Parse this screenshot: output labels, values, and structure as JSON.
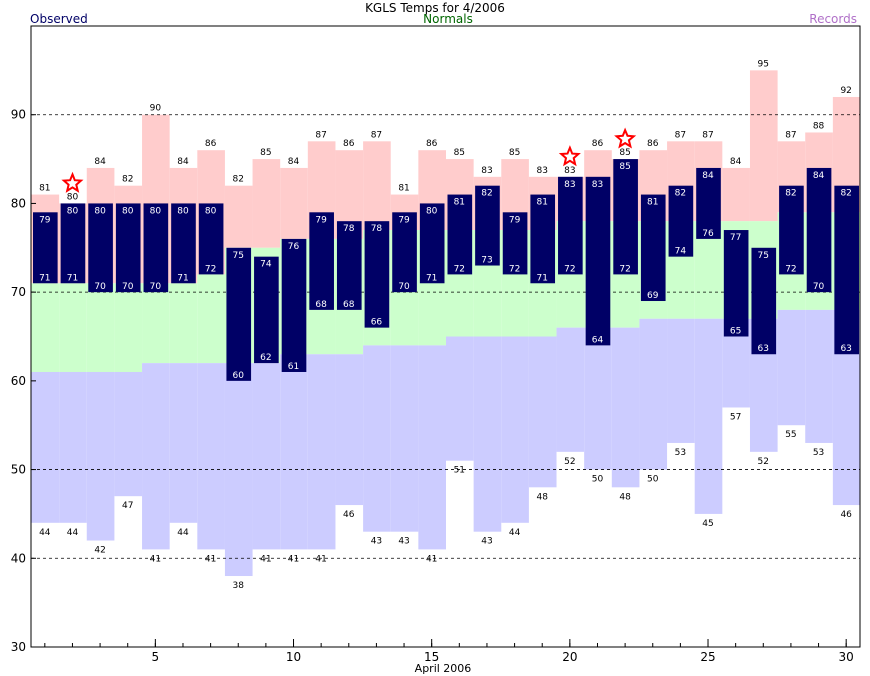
{
  "chart_data": {
    "type": "bar",
    "title": "KGLS Temps for 4/2006",
    "legend": {
      "observed": "Observed",
      "normals": "Normals",
      "records": "Records"
    },
    "xlabel": "April 2006",
    "x_ticks": [
      5,
      10,
      15,
      20,
      25,
      30
    ],
    "y_ticks": [
      30,
      40,
      50,
      60,
      70,
      80,
      90
    ],
    "ylim": [
      30,
      100
    ],
    "xlim": [
      0.5,
      30.5
    ],
    "days": [
      1,
      2,
      3,
      4,
      5,
      6,
      7,
      8,
      9,
      10,
      11,
      12,
      13,
      14,
      15,
      16,
      17,
      18,
      19,
      20,
      21,
      22,
      23,
      24,
      25,
      26,
      27,
      28,
      29,
      30
    ],
    "series": [
      {
        "name": "Observed high",
        "values": [
          79,
          80,
          80,
          80,
          80,
          80,
          80,
          75,
          74,
          76,
          79,
          78,
          78,
          79,
          80,
          81,
          82,
          79,
          81,
          83,
          83,
          85,
          81,
          82,
          84,
          77,
          75,
          82,
          84,
          82
        ]
      },
      {
        "name": "Observed low",
        "values": [
          71,
          71,
          70,
          70,
          70,
          71,
          72,
          60,
          62,
          61,
          68,
          68,
          66,
          70,
          71,
          72,
          73,
          72,
          71,
          72,
          64,
          72,
          69,
          74,
          76,
          65,
          63,
          72,
          70,
          63
        ]
      },
      {
        "name": "Record high",
        "values": [
          81,
          80,
          84,
          82,
          90,
          84,
          86,
          82,
          85,
          84,
          87,
          86,
          87,
          81,
          86,
          85,
          83,
          85,
          83,
          83,
          86,
          85,
          86,
          87,
          87,
          84,
          95,
          87,
          88,
          92
        ]
      },
      {
        "name": "Record low",
        "values": [
          44,
          44,
          42,
          47,
          41,
          44,
          41,
          38,
          41,
          41,
          41,
          46,
          43,
          43,
          41,
          51,
          43,
          44,
          48,
          52,
          50,
          48,
          50,
          53,
          45,
          57,
          52,
          55,
          53,
          46
        ]
      },
      {
        "name": "Normal high",
        "values": [
          71,
          71,
          71,
          71,
          71,
          71,
          72,
          75,
          75,
          76,
          76,
          76,
          77,
          77,
          77,
          77,
          77,
          77,
          77,
          78,
          78,
          78,
          78,
          78,
          78,
          78,
          78,
          79,
          79,
          79
        ]
      },
      {
        "name": "Normal low",
        "values": [
          61,
          61,
          61,
          61,
          62,
          62,
          62,
          62,
          62,
          63,
          63,
          63,
          64,
          64,
          64,
          65,
          65,
          65,
          65,
          66,
          66,
          66,
          67,
          67,
          67,
          67,
          67,
          68,
          68,
          68
        ]
      }
    ],
    "record_days": [
      2,
      20,
      22
    ],
    "colors": {
      "observed": "#000066",
      "normal": "#ccffcc",
      "record_high": "#ffcccc",
      "record_low": "#ccccff",
      "star": "#ff0000",
      "normals_label": "#006600",
      "records_label": "#b070c8"
    },
    "grid": "dashed at 40, 50, 70, 90"
  }
}
